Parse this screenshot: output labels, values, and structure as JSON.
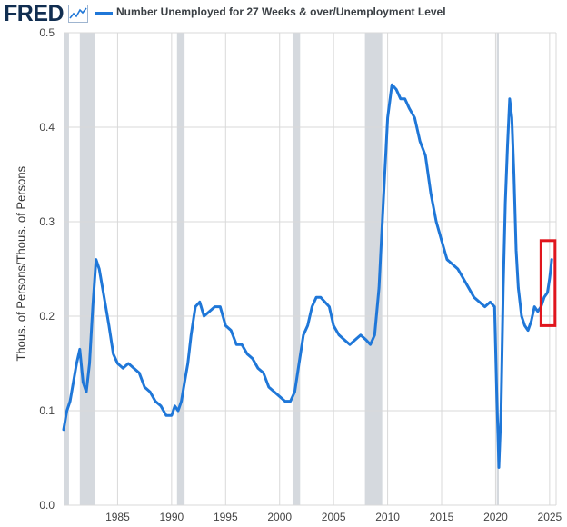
{
  "header": {
    "logo_text": "FRED",
    "logo_icon": "trend-line-icon",
    "legend_label": "Number Unemployed for 27 Weeks & over/Unemployment Level"
  },
  "colors": {
    "line": "#1f77d8",
    "recession": "#d5d9de",
    "grid": "#d9d9d9",
    "highlight_box": "#e0161e"
  },
  "chart_data": {
    "type": "line",
    "title": "Number Unemployed for 27 Weeks & over/Unemployment Level",
    "xlabel": "",
    "ylabel": "Thous. of Persons/Thous. of Persons",
    "xlim": [
      1980.0,
      2025.6
    ],
    "ylim": [
      0.0,
      0.5
    ],
    "y_ticks": [
      "0.0",
      "0.1",
      "0.2",
      "0.3",
      "0.4",
      "0.5"
    ],
    "x_ticks": [
      "1985",
      "1990",
      "1995",
      "2000",
      "2005",
      "2010",
      "2015",
      "2020",
      "2025"
    ],
    "grid": true,
    "recessions": [
      [
        1980.0,
        1980.5
      ],
      [
        1981.5,
        1982.9
      ],
      [
        1990.5,
        1991.2
      ],
      [
        2001.2,
        2001.9
      ],
      [
        2007.9,
        2009.5
      ],
      [
        2020.1,
        2020.3
      ]
    ],
    "highlight_box": {
      "x_start": 2024.2,
      "x_end": 2025.5,
      "y_low": 0.19,
      "y_high": 0.28
    },
    "series": [
      {
        "name": "Number Unemployed for 27 Weeks & over/Unemployment Level",
        "x": [
          1980.0,
          1980.3,
          1980.6,
          1980.9,
          1981.2,
          1981.5,
          1981.8,
          1982.1,
          1982.4,
          1982.7,
          1983.0,
          1983.3,
          1983.6,
          1983.9,
          1984.2,
          1984.6,
          1985.0,
          1985.5,
          1986.0,
          1986.5,
          1987.0,
          1987.5,
          1988.0,
          1988.5,
          1989.0,
          1989.5,
          1990.0,
          1990.3,
          1990.6,
          1990.9,
          1991.2,
          1991.5,
          1991.8,
          1992.2,
          1992.6,
          1993.0,
          1993.5,
          1994.0,
          1994.5,
          1995.0,
          1995.5,
          1996.0,
          1996.5,
          1997.0,
          1997.5,
          1998.0,
          1998.5,
          1999.0,
          1999.5,
          2000.0,
          2000.5,
          2001.0,
          2001.4,
          2001.8,
          2002.2,
          2002.6,
          2003.0,
          2003.4,
          2003.8,
          2004.2,
          2004.6,
          2005.0,
          2005.5,
          2006.0,
          2006.5,
          2007.0,
          2007.5,
          2008.0,
          2008.4,
          2008.8,
          2009.2,
          2009.6,
          2010.0,
          2010.4,
          2010.8,
          2011.2,
          2011.6,
          2012.0,
          2012.5,
          2013.0,
          2013.5,
          2014.0,
          2014.5,
          2015.0,
          2015.5,
          2016.0,
          2016.5,
          2017.0,
          2017.5,
          2018.0,
          2018.5,
          2019.0,
          2019.5,
          2019.9,
          2020.1,
          2020.3,
          2020.5,
          2020.7,
          2020.9,
          2021.1,
          2021.3,
          2021.5,
          2021.7,
          2021.9,
          2022.1,
          2022.4,
          2022.7,
          2023.0,
          2023.3,
          2023.6,
          2023.9,
          2024.2,
          2024.5,
          2024.8,
          2025.0,
          2025.2
        ],
        "values": [
          0.08,
          0.1,
          0.11,
          0.13,
          0.15,
          0.165,
          0.13,
          0.12,
          0.15,
          0.21,
          0.26,
          0.25,
          0.23,
          0.21,
          0.19,
          0.16,
          0.15,
          0.145,
          0.15,
          0.145,
          0.14,
          0.125,
          0.12,
          0.11,
          0.105,
          0.095,
          0.095,
          0.105,
          0.1,
          0.11,
          0.13,
          0.15,
          0.18,
          0.21,
          0.215,
          0.2,
          0.205,
          0.21,
          0.21,
          0.19,
          0.185,
          0.17,
          0.17,
          0.16,
          0.155,
          0.145,
          0.14,
          0.125,
          0.12,
          0.115,
          0.11,
          0.11,
          0.12,
          0.15,
          0.18,
          0.19,
          0.21,
          0.22,
          0.22,
          0.215,
          0.21,
          0.19,
          0.18,
          0.175,
          0.17,
          0.175,
          0.18,
          0.175,
          0.17,
          0.18,
          0.23,
          0.32,
          0.41,
          0.445,
          0.44,
          0.43,
          0.43,
          0.42,
          0.41,
          0.385,
          0.37,
          0.33,
          0.3,
          0.28,
          0.26,
          0.255,
          0.25,
          0.24,
          0.23,
          0.22,
          0.215,
          0.21,
          0.215,
          0.21,
          0.12,
          0.04,
          0.1,
          0.23,
          0.32,
          0.38,
          0.43,
          0.41,
          0.35,
          0.27,
          0.23,
          0.2,
          0.19,
          0.185,
          0.195,
          0.21,
          0.205,
          0.21,
          0.22,
          0.225,
          0.24,
          0.26
        ]
      }
    ]
  }
}
